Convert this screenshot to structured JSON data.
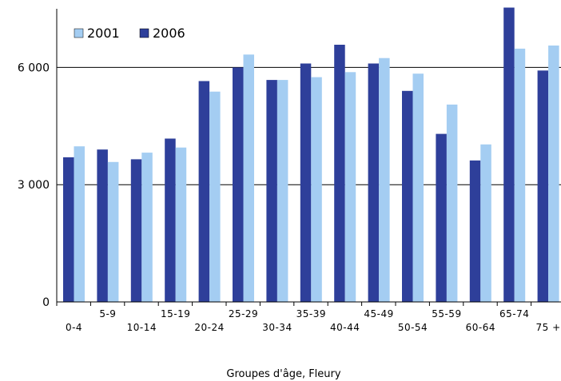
{
  "chart_data": {
    "type": "bar",
    "title": "",
    "xlabel": "Groupes d'âge, Fleury",
    "ylabel": "",
    "ylim": [
      0,
      7500
    ],
    "yticks": [
      {
        "value": 0,
        "label": "0"
      },
      {
        "value": 3000,
        "label": "3 000"
      },
      {
        "value": 6000,
        "label": "6 000"
      }
    ],
    "grid": true,
    "legend_position": "top-left",
    "categories": [
      "0-4",
      "5-9",
      "10-14",
      "15-19",
      "20-24",
      "25-29",
      "30-34",
      "35-39",
      "40-44",
      "45-49",
      "50-54",
      "55-59",
      "60-64",
      "65-74",
      "75 +"
    ],
    "series": [
      {
        "name": "2006",
        "color": "#2e3f9a",
        "values": [
          3700,
          3900,
          3650,
          4180,
          5650,
          6000,
          5680,
          6100,
          6580,
          6100,
          5400,
          4300,
          3620,
          7530,
          5920
        ]
      },
      {
        "name": "2001",
        "color": "#a4cdf2",
        "values": [
          3980,
          3580,
          3820,
          3950,
          5380,
          6330,
          5680,
          5750,
          5880,
          6240,
          5840,
          5050,
          4030,
          6480,
          6560
        ]
      }
    ]
  }
}
